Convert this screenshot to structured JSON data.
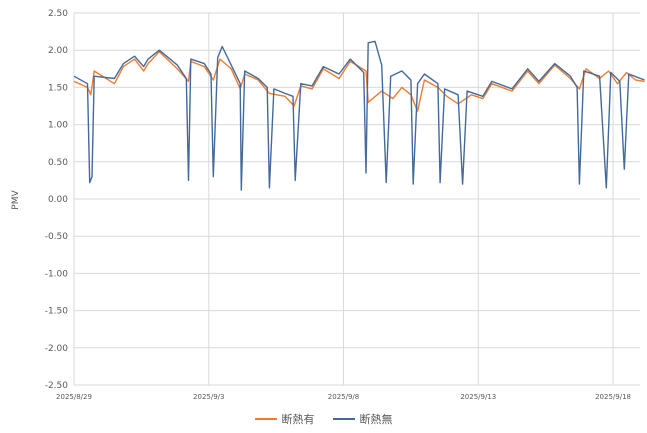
{
  "chart_data": {
    "type": "line",
    "title": "",
    "xlabel": "",
    "ylabel": "PMV",
    "ylim": [
      -2.5,
      2.5
    ],
    "yticks": [
      "2.50",
      "2.00",
      "1.50",
      "1.00",
      "0.50",
      "0.00",
      "-0.50",
      "-1.00",
      "-1.50",
      "-2.00",
      "-2.50"
    ],
    "xlim": [
      "2025/8/29",
      "2025/9/19"
    ],
    "xticks": [
      "2025/8/29",
      "2025/9/3",
      "2025/9/8",
      "2025/9/13",
      "2025/9/18"
    ],
    "grid": "vertical and horizontal major gridlines",
    "legend": "bottom",
    "series": [
      {
        "name": "断熱有",
        "color": "#ED7D31",
        "points": [
          [
            "2025/8/29",
            1.58
          ],
          [
            "2025/8/29 12:00",
            1.5
          ],
          [
            "2025/8/29 15:00",
            1.4
          ],
          [
            "2025/8/29 18:00",
            1.72
          ],
          [
            "2025/8/30 12:00",
            1.55
          ],
          [
            "2025/8/30 20:00",
            1.78
          ],
          [
            "2025/8/31 06:00",
            1.88
          ],
          [
            "2025/8/31 14:00",
            1.72
          ],
          [
            "2025/8/31 18:00",
            1.82
          ],
          [
            "2025/9/1 04:00",
            1.98
          ],
          [
            "2025/9/1 20:00",
            1.75
          ],
          [
            "2025/9/2 06:00",
            1.58
          ],
          [
            "2025/9/2 08:00",
            1.85
          ],
          [
            "2025/9/2 20:00",
            1.78
          ],
          [
            "2025/9/3 04:00",
            1.6
          ],
          [
            "2025/9/3 10:00",
            1.88
          ],
          [
            "2025/9/3 20:00",
            1.75
          ],
          [
            "2025/9/4 04:00",
            1.48
          ],
          [
            "2025/9/4 08:00",
            1.68
          ],
          [
            "2025/9/4 20:00",
            1.6
          ],
          [
            "2025/9/5 06:00",
            1.42
          ],
          [
            "2025/9/5 20:00",
            1.38
          ],
          [
            "2025/9/6 04:00",
            1.25
          ],
          [
            "2025/9/6 10:00",
            1.52
          ],
          [
            "2025/9/6 20:00",
            1.48
          ],
          [
            "2025/9/7 06:00",
            1.75
          ],
          [
            "2025/9/7 20:00",
            1.62
          ],
          [
            "2025/9/8 06:00",
            1.85
          ],
          [
            "2025/9/8 20:00",
            1.72
          ],
          [
            "2025/9/8 22:00",
            1.3
          ],
          [
            "2025/9/9 10:00",
            1.45
          ],
          [
            "2025/9/9 20:00",
            1.35
          ],
          [
            "2025/9/10 04:00",
            1.5
          ],
          [
            "2025/9/10 12:00",
            1.4
          ],
          [
            "2025/9/10 18:00",
            1.18
          ],
          [
            "2025/9/11 00:00",
            1.6
          ],
          [
            "2025/9/11 12:00",
            1.5
          ],
          [
            "2025/9/11 20:00",
            1.38
          ],
          [
            "2025/9/12 06:00",
            1.28
          ],
          [
            "2025/9/12 18:00",
            1.4
          ],
          [
            "2025/9/13 04:00",
            1.35
          ],
          [
            "2025/9/13 12:00",
            1.55
          ],
          [
            "2025/9/14 06:00",
            1.45
          ],
          [
            "2025/9/14 20:00",
            1.72
          ],
          [
            "2025/9/15 06:00",
            1.55
          ],
          [
            "2025/9/15 20:00",
            1.8
          ],
          [
            "2025/9/16 10:00",
            1.62
          ],
          [
            "2025/9/16 18:00",
            1.48
          ],
          [
            "2025/9/17 00:00",
            1.75
          ],
          [
            "2025/9/17 12:00",
            1.62
          ],
          [
            "2025/9/17 20:00",
            1.72
          ],
          [
            "2025/9/18 04:00",
            1.55
          ],
          [
            "2025/9/18 12:00",
            1.7
          ],
          [
            "2025/9/18 20:00",
            1.6
          ],
          [
            "2025/9/19 04:00",
            1.58
          ]
        ]
      },
      {
        "name": "断熱無",
        "color": "#44699B",
        "points": [
          [
            "2025/8/29",
            1.65
          ],
          [
            "2025/8/29 12:00",
            1.55
          ],
          [
            "2025/8/29 14:00",
            0.22
          ],
          [
            "2025/8/29 16:00",
            0.3
          ],
          [
            "2025/8/29 18:00",
            1.65
          ],
          [
            "2025/8/30 12:00",
            1.62
          ],
          [
            "2025/8/30 20:00",
            1.82
          ],
          [
            "2025/8/31 06:00",
            1.92
          ],
          [
            "2025/8/31 14:00",
            1.78
          ],
          [
            "2025/8/31 18:00",
            1.88
          ],
          [
            "2025/9/1 04:00",
            2.0
          ],
          [
            "2025/9/1 20:00",
            1.8
          ],
          [
            "2025/9/2 04:00",
            1.62
          ],
          [
            "2025/9/2 06:00",
            0.25
          ],
          [
            "2025/9/2 08:00",
            1.88
          ],
          [
            "2025/9/2 20:00",
            1.82
          ],
          [
            "2025/9/3 02:00",
            1.68
          ],
          [
            "2025/9/3 04:00",
            0.3
          ],
          [
            "2025/9/3 08:00",
            1.9
          ],
          [
            "2025/9/3 12:00",
            2.05
          ],
          [
            "2025/9/3 20:00",
            1.8
          ],
          [
            "2025/9/4 04:00",
            1.55
          ],
          [
            "2025/9/4 05:00",
            0.12
          ],
          [
            "2025/9/4 08:00",
            1.72
          ],
          [
            "2025/9/4 20:00",
            1.62
          ],
          [
            "2025/9/5 04:00",
            1.5
          ],
          [
            "2025/9/5 06:00",
            0.15
          ],
          [
            "2025/9/5 10:00",
            1.48
          ],
          [
            "2025/9/5 20:00",
            1.42
          ],
          [
            "2025/9/6 03:00",
            1.38
          ],
          [
            "2025/9/6 05:00",
            0.25
          ],
          [
            "2025/9/6 10:00",
            1.55
          ],
          [
            "2025/9/6 20:00",
            1.52
          ],
          [
            "2025/9/7 06:00",
            1.78
          ],
          [
            "2025/9/7 20:00",
            1.68
          ],
          [
            "2025/9/8 06:00",
            1.88
          ],
          [
            "2025/9/8 18:00",
            1.7
          ],
          [
            "2025/9/8 20:00",
            0.35
          ],
          [
            "2025/9/8 22:00",
            2.1
          ],
          [
            "2025/9/9 04:00",
            2.12
          ],
          [
            "2025/9/9 10:00",
            1.8
          ],
          [
            "2025/9/9 14:00",
            0.22
          ],
          [
            "2025/9/9 18:00",
            1.65
          ],
          [
            "2025/9/10 04:00",
            1.72
          ],
          [
            "2025/9/10 12:00",
            1.6
          ],
          [
            "2025/9/10 14:00",
            0.2
          ],
          [
            "2025/9/10 18:00",
            1.55
          ],
          [
            "2025/9/11 00:00",
            1.68
          ],
          [
            "2025/9/11 12:00",
            1.55
          ],
          [
            "2025/9/11 14:00",
            0.22
          ],
          [
            "2025/9/11 18:00",
            1.48
          ],
          [
            "2025/9/12 06:00",
            1.4
          ],
          [
            "2025/9/12 10:00",
            0.2
          ],
          [
            "2025/9/12 14:00",
            1.45
          ],
          [
            "2025/9/13 04:00",
            1.38
          ],
          [
            "2025/9/13 12:00",
            1.58
          ],
          [
            "2025/9/14 06:00",
            1.48
          ],
          [
            "2025/9/14 20:00",
            1.75
          ],
          [
            "2025/9/15 06:00",
            1.58
          ],
          [
            "2025/9/15 20:00",
            1.82
          ],
          [
            "2025/9/16 10:00",
            1.65
          ],
          [
            "2025/9/16 16:00",
            1.5
          ],
          [
            "2025/9/16 18:00",
            0.2
          ],
          [
            "2025/9/16 22:00",
            1.72
          ],
          [
            "2025/9/17 12:00",
            1.65
          ],
          [
            "2025/9/17 18:00",
            0.15
          ],
          [
            "2025/9/17 22:00",
            1.7
          ],
          [
            "2025/9/18 06:00",
            1.58
          ],
          [
            "2025/9/18 10:00",
            0.4
          ],
          [
            "2025/9/18 14:00",
            1.68
          ],
          [
            "2025/9/19 04:00",
            1.6
          ]
        ]
      }
    ]
  }
}
